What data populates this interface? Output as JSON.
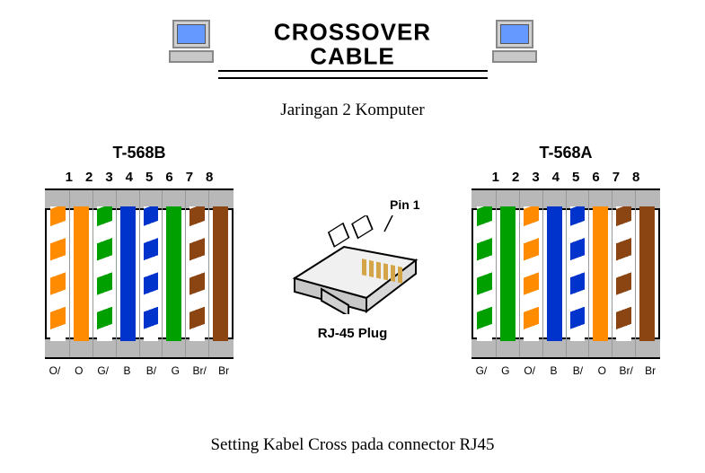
{
  "header": {
    "title_line1": "CROSSOVER",
    "title_line2": "CABLE"
  },
  "subtitle": "Jaringan 2 Komputer",
  "colors": {
    "orange": "#ff8c00",
    "green": "#00a000",
    "blue": "#0033cc",
    "brown": "#8b4513",
    "white": "#ffffff",
    "header_gray": "#b8b8b8"
  },
  "pin_numbers": [
    "1",
    "2",
    "3",
    "4",
    "5",
    "6",
    "7",
    "8"
  ],
  "left_connector": {
    "title": "T-568B",
    "wires": [
      {
        "type": "striped",
        "stripe": "#ff8c00",
        "label": "O/"
      },
      {
        "type": "solid",
        "color": "#ff8c00",
        "label": "O"
      },
      {
        "type": "striped",
        "stripe": "#00a000",
        "label": "G/"
      },
      {
        "type": "solid",
        "color": "#0033cc",
        "label": "B"
      },
      {
        "type": "striped",
        "stripe": "#0033cc",
        "label": "B/"
      },
      {
        "type": "solid",
        "color": "#00a000",
        "label": "G"
      },
      {
        "type": "striped",
        "stripe": "#8b4513",
        "label": "Br/"
      },
      {
        "type": "solid",
        "color": "#8b4513",
        "label": "Br"
      }
    ]
  },
  "right_connector": {
    "title": "T-568A",
    "wires": [
      {
        "type": "striped",
        "stripe": "#00a000",
        "label": "G/"
      },
      {
        "type": "solid",
        "color": "#00a000",
        "label": "G"
      },
      {
        "type": "striped",
        "stripe": "#ff8c00",
        "label": "O/"
      },
      {
        "type": "solid",
        "color": "#0033cc",
        "label": "B"
      },
      {
        "type": "striped",
        "stripe": "#0033cc",
        "label": "B/"
      },
      {
        "type": "solid",
        "color": "#ff8c00",
        "label": "O"
      },
      {
        "type": "striped",
        "stripe": "#8b4513",
        "label": "Br/"
      },
      {
        "type": "solid",
        "color": "#8b4513",
        "label": "Br"
      }
    ]
  },
  "plug": {
    "pin1_label": "Pin 1",
    "caption": "RJ-45 Plug"
  },
  "footer": "Setting Kabel Cross pada connector RJ45",
  "stripe_pattern": {
    "segment_height": 18,
    "angle_deg": -20
  }
}
